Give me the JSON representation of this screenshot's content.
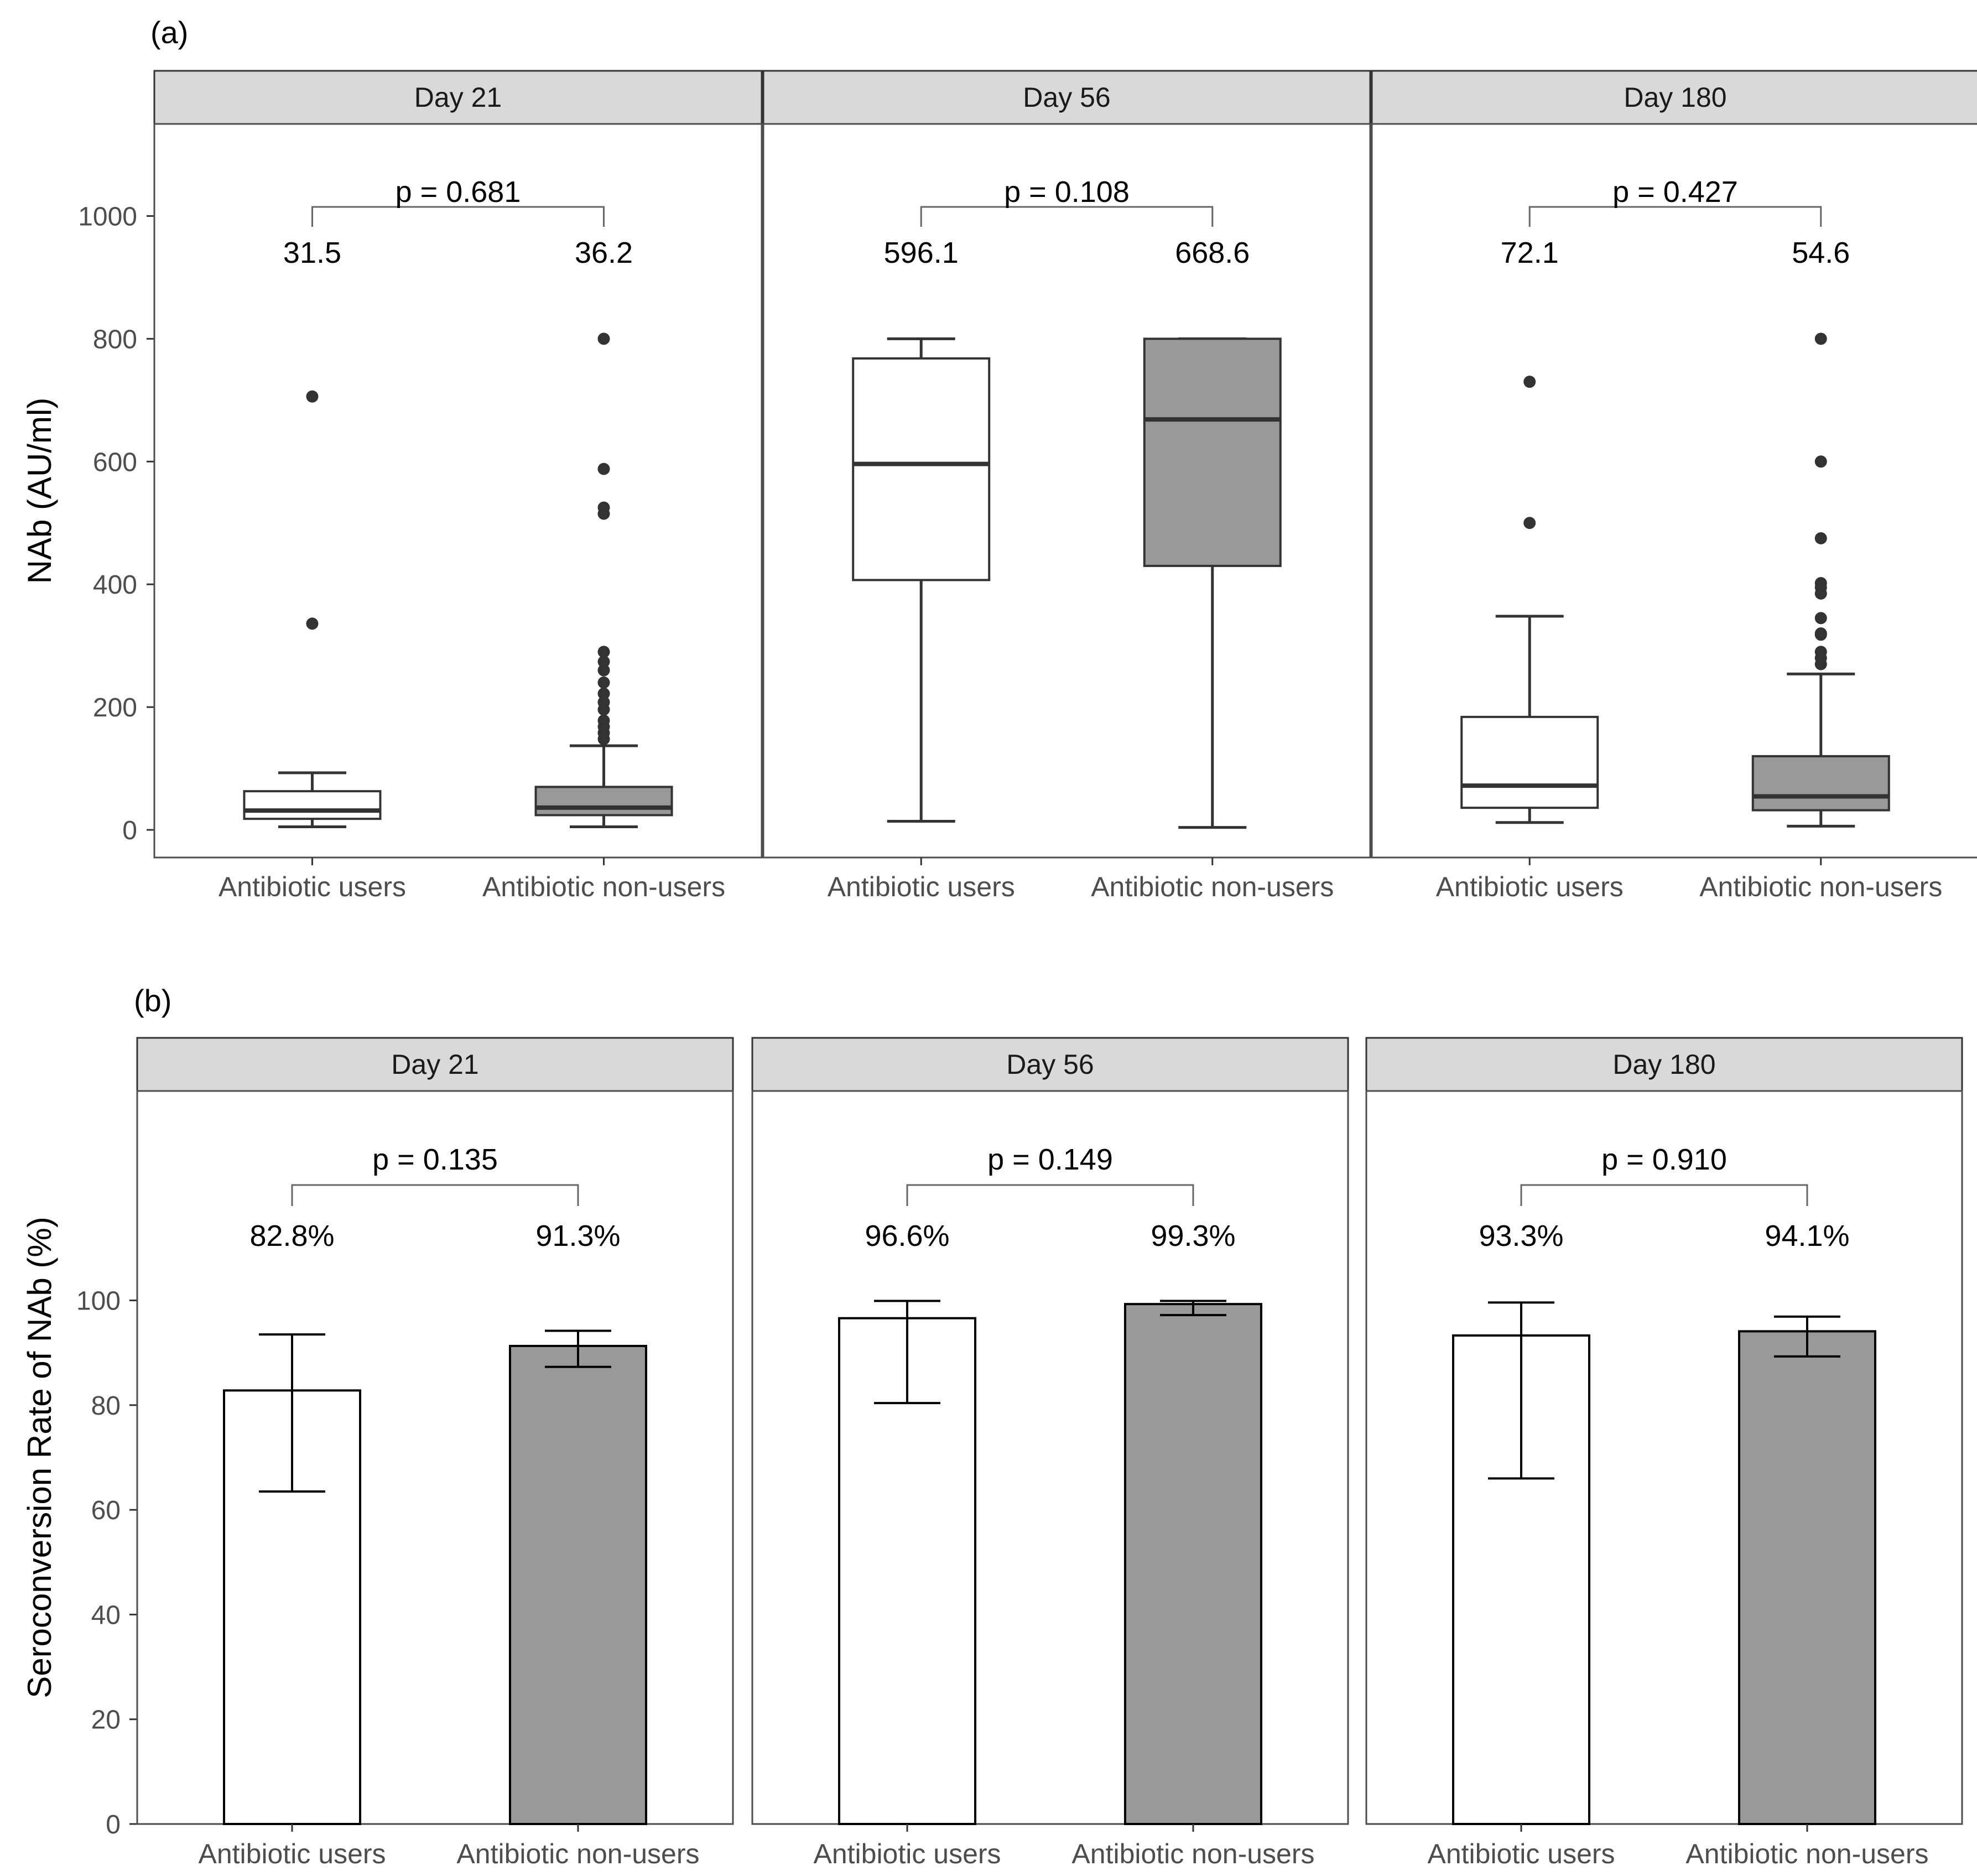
{
  "chart_data": [
    {
      "panel_label": "(a)",
      "type": "box",
      "ylabel": "NAb (AU/ml)",
      "ylim": [
        -45,
        1150
      ],
      "yticks": [
        0,
        200,
        400,
        600,
        800,
        1000
      ],
      "categories": [
        "Antibiotic users",
        "Antibiotic non-users"
      ],
      "series_fills": [
        "#ffffff",
        "#999999"
      ],
      "facets": [
        {
          "strip": "Day 21",
          "p_label": "p = 0.681",
          "annotations": [
            "31.5",
            "36.2"
          ],
          "boxes": [
            {
              "whisker_low": 5,
              "q1": 18,
              "median": 31.5,
              "q3": 63,
              "whisker_high": 93,
              "outliers": [
                336,
                706
              ]
            },
            {
              "whisker_low": 5,
              "q1": 24,
              "median": 36.2,
              "q3": 70,
              "whisker_high": 137,
              "outliers": [
                148,
                158,
                168,
                178,
                196,
                208,
                222,
                240,
                260,
                274,
                290,
                515,
                525,
                588,
                800
              ]
            }
          ]
        },
        {
          "strip": "Day 56",
          "p_label": "p = 0.108",
          "annotations": [
            "596.1",
            "668.6"
          ],
          "boxes": [
            {
              "whisker_low": 14,
              "q1": 407,
              "median": 596.1,
              "q3": 768,
              "whisker_high": 800,
              "outliers": []
            },
            {
              "whisker_low": 4,
              "q1": 430,
              "median": 668.6,
              "q3": 800,
              "whisker_high": 800,
              "outliers": []
            }
          ]
        },
        {
          "strip": "Day 180",
          "p_label": "p = 0.427",
          "annotations": [
            "72.1",
            "54.6"
          ],
          "boxes": [
            {
              "whisker_low": 12,
              "q1": 36,
              "median": 72.1,
              "q3": 184,
              "whisker_high": 348,
              "outliers": [
                500,
                730
              ]
            },
            {
              "whisker_low": 6,
              "q1": 32,
              "median": 54.6,
              "q3": 120,
              "whisker_high": 254,
              "outliers": [
                270,
                280,
                290,
                318,
                320,
                345,
                385,
                395,
                402,
                475,
                600,
                800
              ]
            }
          ]
        }
      ]
    },
    {
      "panel_label": "(b)",
      "type": "bar",
      "ylabel": "Seroconversion Rate of NAb (%)",
      "ylim": [
        0,
        140
      ],
      "yticks": [
        0,
        20,
        40,
        60,
        80,
        100
      ],
      "categories": [
        "Antibiotic users",
        "Antibiotic non-users"
      ],
      "series_fills": [
        "#ffffff",
        "#999999"
      ],
      "facets": [
        {
          "strip": "Day 21",
          "p_label": "p = 0.135",
          "annotations": [
            "82.8%",
            "91.3%"
          ],
          "bars": [
            {
              "value": 82.8,
              "ci_low": 63.5,
              "ci_high": 93.5
            },
            {
              "value": 91.3,
              "ci_low": 87.3,
              "ci_high": 94.2
            }
          ]
        },
        {
          "strip": "Day 56",
          "p_label": "p = 0.149",
          "annotations": [
            "96.6%",
            "99.3%"
          ],
          "bars": [
            {
              "value": 96.6,
              "ci_low": 80.4,
              "ci_high": 99.9
            },
            {
              "value": 99.3,
              "ci_low": 97.2,
              "ci_high": 99.9
            }
          ]
        },
        {
          "strip": "Day 180",
          "p_label": "p = 0.910",
          "annotations": [
            "93.3%",
            "94.1%"
          ],
          "bars": [
            {
              "value": 93.3,
              "ci_low": 66.0,
              "ci_high": 99.6
            },
            {
              "value": 94.1,
              "ci_low": 89.3,
              "ci_high": 96.9
            }
          ]
        }
      ]
    }
  ]
}
